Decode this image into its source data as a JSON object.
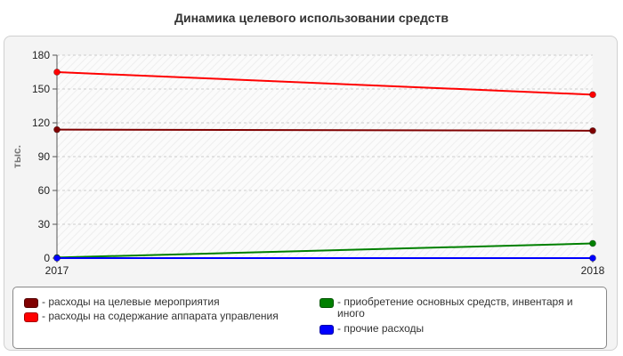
{
  "chart_data": {
    "type": "line",
    "title": "Динамика целевого использовании средств",
    "ylabel": "тыс.",
    "xlabel": "",
    "x": [
      "2017",
      "2018"
    ],
    "ylim": [
      0,
      180
    ],
    "yticks": [
      0,
      30,
      60,
      90,
      120,
      150,
      180
    ],
    "grid": true,
    "legend_position": "bottom",
    "series": [
      {
        "name": "расходы на целевые мероприятия",
        "color": "#800000",
        "values": [
          114,
          113
        ]
      },
      {
        "name": "расходы на содержание аппарата управления",
        "color": "#ff0000",
        "values": [
          165,
          145
        ]
      },
      {
        "name": "приобретение основных средств, инвентаря и иного",
        "color": "#008000",
        "values": [
          0.5,
          13
        ]
      },
      {
        "name": "прочие расходы",
        "color": "#0000ff",
        "values": [
          0,
          0
        ]
      }
    ]
  }
}
